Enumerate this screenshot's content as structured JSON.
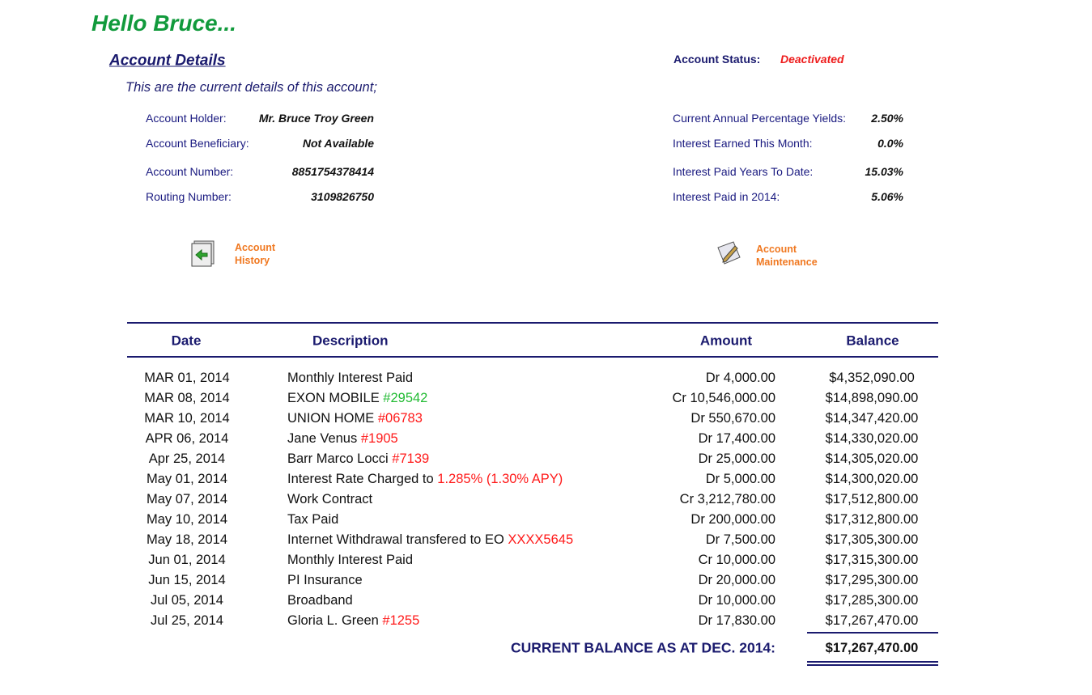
{
  "greeting": "Hello Bruce...",
  "section_title": "Account Details",
  "status": {
    "label": "Account Status:",
    "value": "Deactivated"
  },
  "intro": "This are the current details of this account;",
  "details_left": [
    {
      "label": "Account Holder:",
      "value": "Mr. Bruce Troy Green"
    },
    {
      "label": "Account Beneficiary:",
      "value": "Not Available"
    },
    {
      "label": "Account Number:",
      "value": "8851754378414"
    },
    {
      "label": "Routing Number:",
      "value": "3109826750"
    }
  ],
  "details_right": [
    {
      "label": "Current Annual Percentage Yields:",
      "value": "2.50%"
    },
    {
      "label": "Interest Earned This Month:",
      "value": "0.0%"
    },
    {
      "label": "Interest Paid Years To Date:",
      "value": "15.03%"
    },
    {
      "label": "Interest Paid in 2014:",
      "value": "5.06%"
    }
  ],
  "links": [
    {
      "line1": "Account",
      "line2": "History"
    },
    {
      "line1": "Account",
      "line2": "Maintenance"
    }
  ],
  "table": {
    "headers": [
      "Date",
      "Description",
      "Amount",
      "Balance"
    ],
    "rows": [
      {
        "date": "MAR 01, 2014",
        "description": "Monthly Interest Paid",
        "amount": "Dr 4,000.00",
        "balance": "$4,352,090.00"
      },
      {
        "date": "MAR 08, 2014",
        "description": "EXON MOBILE",
        "ref": "#29542",
        "ref_color": "#22bb33",
        "amount": "Cr 10,546,000.00",
        "balance": "$14,898,090.00"
      },
      {
        "date": "MAR 10, 2014",
        "description": "UNION HOME",
        "ref": "#06783",
        "ref_color": "#ff1a1a",
        "amount": "Dr 550,670.00",
        "balance": "$14,347,420.00"
      },
      {
        "date": "APR 06, 2014",
        "description": "Jane Venus",
        "ref": "#1905",
        "ref_color": "#ff1a1a",
        "amount": "Dr 17,400.00",
        "balance": "$14,330,020.00"
      },
      {
        "date": "Apr 25, 2014",
        "description": "Barr Marco Locci",
        "ref": "#7139",
        "ref_color": "#ff1a1a",
        "amount": "Dr 25,000.00",
        "balance": "$14,305,020.00"
      },
      {
        "date": "May 01, 2014",
        "description": "Interest Rate Charged to",
        "ref": "1.285% (1.30% APY)",
        "ref_color": "#ff1a1a",
        "amount": "Dr 5,000.00",
        "balance": "$14,300,020.00"
      },
      {
        "date": "May 07, 2014",
        "description": "Work Contract",
        "amount": "Cr 3,212,780.00",
        "balance": "$17,512,800.00"
      },
      {
        "date": "May 10, 2014",
        "description": "Tax Paid",
        "amount": "Dr 200,000.00",
        "balance": "$17,312,800.00"
      },
      {
        "date": "May 18, 2014",
        "description": "Internet Withdrawal transfered to EO",
        "ref": "XXXX5645",
        "ref_color": "#ff1a1a",
        "amount": "Dr 7,500.00",
        "balance": "$17,305,300.00"
      },
      {
        "date": "Jun 01, 2014",
        "description": "Monthly Interest Paid",
        "amount": "Cr 10,000.00",
        "balance": "$17,315,300.00"
      },
      {
        "date": "Jun 15, 2014",
        "description": "PI Insurance",
        "amount": "Dr 20,000.00",
        "balance": "$17,295,300.00"
      },
      {
        "date": "Jul 05, 2014",
        "description": "Broadband",
        "amount": "Dr 10,000.00",
        "balance": "$17,285,300.00"
      },
      {
        "date": "Jul 25, 2014",
        "description": "Gloria L. Green",
        "ref": "#1255",
        "ref_color": "#ff1a1a",
        "amount": "Dr 17,830.00",
        "balance": "$17,267,470.00"
      }
    ],
    "total": {
      "label": "CURRENT BALANCE AS AT DEC. 2014:",
      "value": "$17,267,470.00"
    }
  }
}
